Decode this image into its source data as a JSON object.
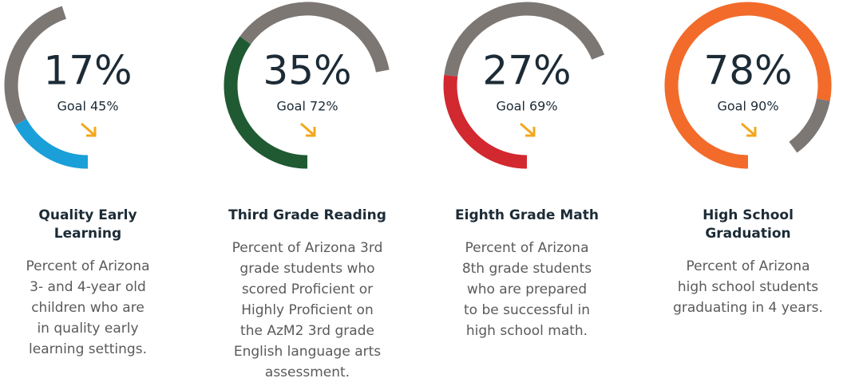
{
  "chart_data": [
    {
      "type": "gauge",
      "values": [
        17
      ],
      "value_labels": [
        "17%"
      ],
      "goal": 45,
      "goal_label": "Goal 45%",
      "color": "#1a9fd9",
      "goal_color": "#7d7774",
      "title": [
        "Quality Early",
        "Learning"
      ],
      "description": [
        "Percent of Arizona",
        "3- and 4-year old",
        "children who are",
        "in quality early",
        "learning settings."
      ]
    },
    {
      "type": "gauge",
      "values": [
        35
      ],
      "value_labels": [
        "35%"
      ],
      "goal": 72,
      "goal_label": "Goal 72%",
      "color": "#1f5a32",
      "goal_color": "#7d7774",
      "title": [
        "Third Grade Reading"
      ],
      "description": [
        "Percent of Arizona 3rd",
        "grade students who",
        "scored Proficient or",
        "Highly Proficient on",
        "the AzM2 3rd grade",
        "English language arts",
        "assessment."
      ]
    },
    {
      "type": "gauge",
      "values": [
        27
      ],
      "value_labels": [
        "27%"
      ],
      "goal": 69,
      "goal_label": "Goal 69%",
      "color": "#d2282f",
      "goal_color": "#7d7774",
      "title": [
        "Eighth Grade Math"
      ],
      "description": [
        "Percent of Arizona",
        "8th grade students",
        "who are prepared",
        "to be successful in",
        "high school math."
      ]
    },
    {
      "type": "gauge",
      "values": [
        78
      ],
      "value_labels": [
        "78%"
      ],
      "goal": 90,
      "goal_label": "Goal 90%",
      "color": "#f26b2a",
      "goal_color": "#7d7774",
      "title": [
        "High School",
        "Graduation"
      ],
      "description": [
        "Percent of Arizona",
        "high school students",
        "graduating in 4 years."
      ]
    }
  ]
}
